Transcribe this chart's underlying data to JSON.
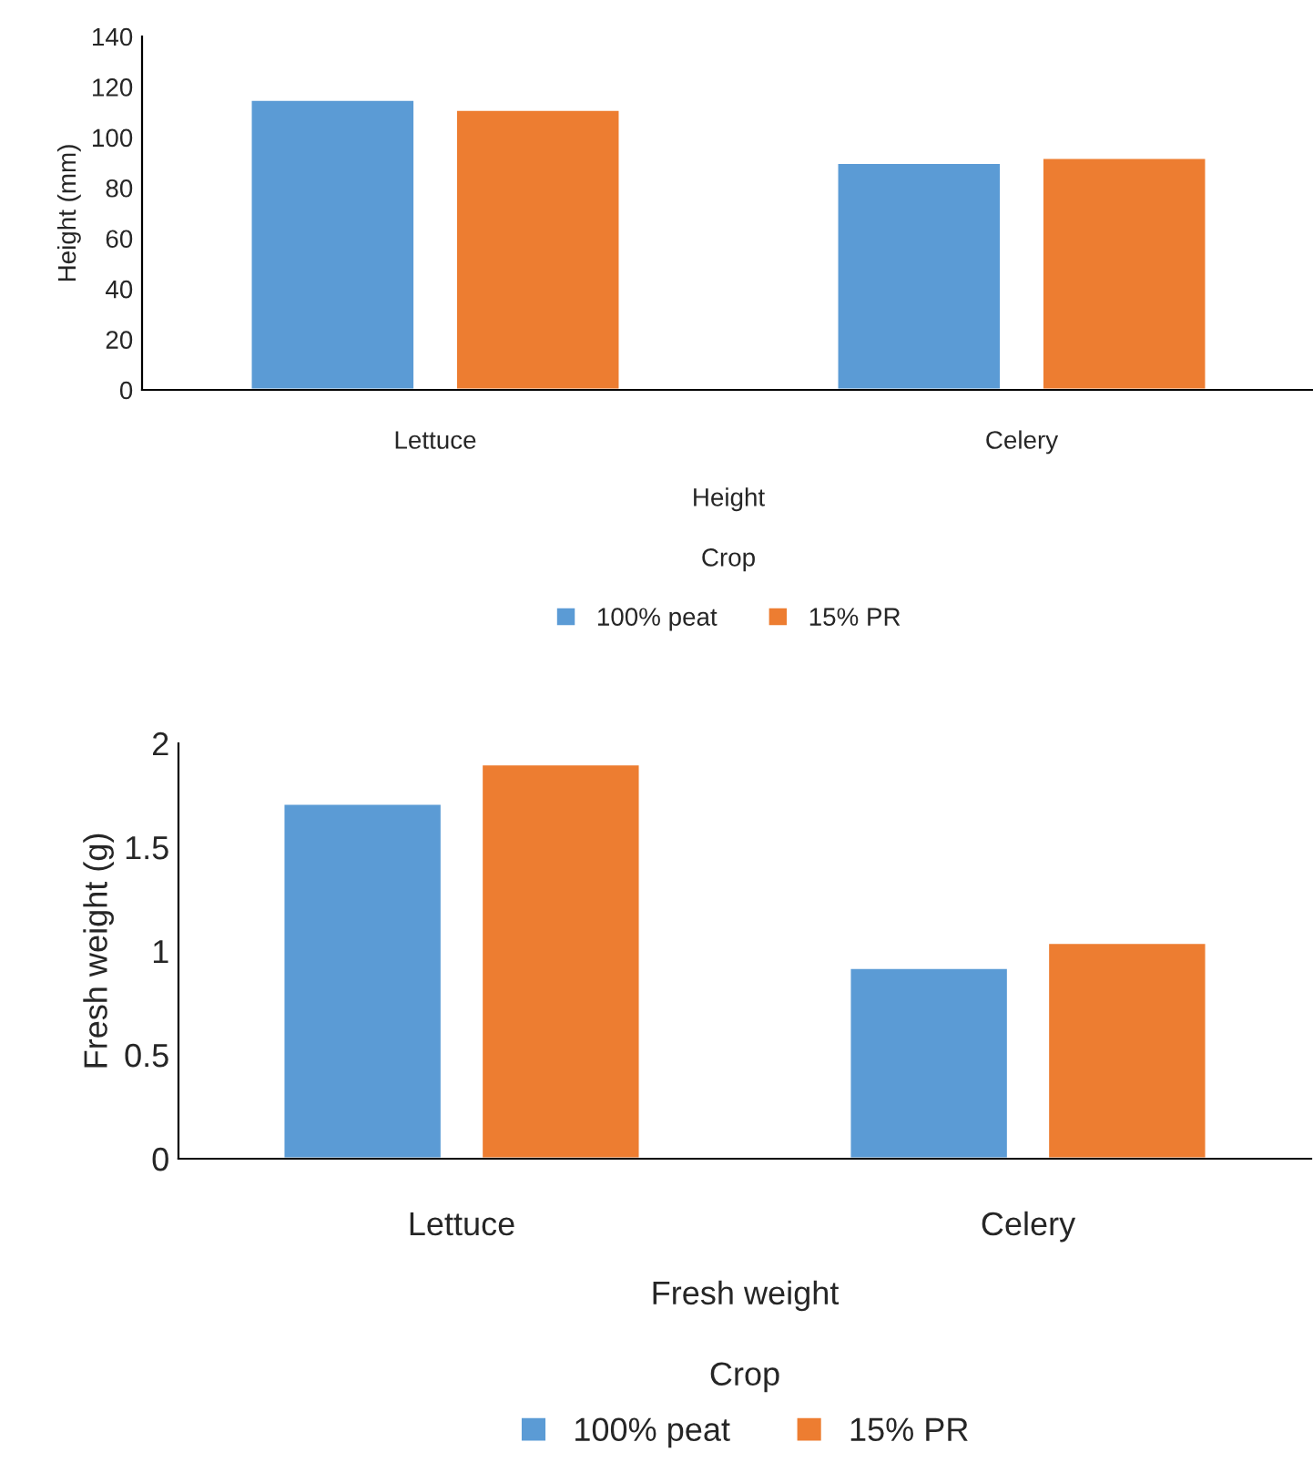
{
  "chart_data": [
    {
      "type": "bar",
      "ylabel": "Height (mm)",
      "xlabel": "Crop",
      "annotations": [
        "Height"
      ],
      "categories": [
        "Lettuce",
        "Celery"
      ],
      "ylim": [
        0,
        140
      ],
      "yticks": [
        0,
        20,
        40,
        60,
        80,
        100,
        120,
        140
      ],
      "grid": false,
      "legend": "bottom",
      "series": [
        {
          "name": "100% peat",
          "color": "#5b9bd5",
          "values": [
            115,
            90
          ]
        },
        {
          "name": "15% PR",
          "color": "#ed7d31",
          "values": [
            111,
            92
          ]
        }
      ]
    },
    {
      "type": "bar",
      "ylabel": "Fresh weight (g)",
      "xlabel": "Crop",
      "annotations": [
        "Fresh weight"
      ],
      "categories": [
        "Lettuce",
        "Celery"
      ],
      "ylim": [
        0,
        2
      ],
      "yticks": [
        0,
        0.5,
        1,
        1.5,
        2
      ],
      "grid": false,
      "legend": "bottom",
      "series": [
        {
          "name": "100% peat",
          "color": "#5b9bd5",
          "values": [
            1.71,
            0.92
          ]
        },
        {
          "name": "15% PR",
          "color": "#ed7d31",
          "values": [
            1.9,
            1.04
          ]
        }
      ]
    }
  ]
}
